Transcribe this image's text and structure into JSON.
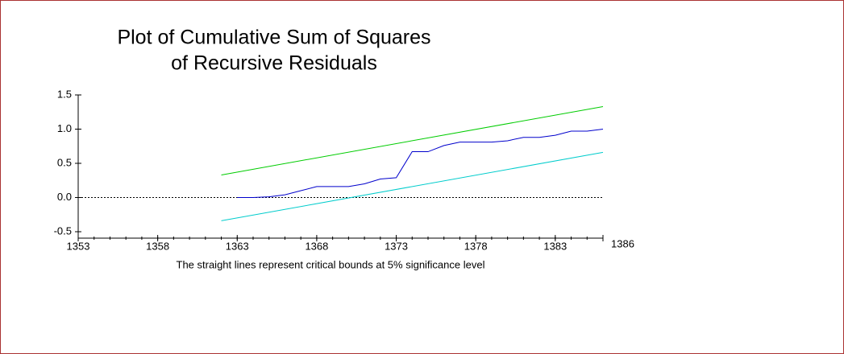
{
  "chart_data": {
    "type": "line",
    "title": [
      "Plot of Cumulative Sum of Squares",
      "of Recursive Residuals"
    ],
    "note": "The straight lines represent critical bounds at 5% significance level",
    "xlim": [
      1353,
      1386
    ],
    "xticks": [
      1353,
      1358,
      1363,
      1368,
      1373,
      1378,
      1383,
      1386
    ],
    "ylim": [
      -0.5,
      1.5
    ],
    "yticks": [
      {
        "value": 1.5,
        "label": "1.5"
      },
      {
        "value": 1,
        "label": "1.0"
      },
      {
        "value": 0.5,
        "label": "0.5"
      },
      {
        "value": 0,
        "label": "0.0"
      },
      {
        "value": -0.5,
        "label": "-0.5"
      }
    ],
    "reference_line": 0,
    "series": [
      {
        "color": "#00cc00",
        "x": [
          1362,
          1386
        ],
        "values": [
          0.33,
          1.33
        ]
      },
      {
        "color": "#00cccc",
        "x": [
          1362,
          1386
        ],
        "values": [
          -0.34,
          0.66
        ]
      },
      {
        "color": "#0000cc",
        "x": [
          1363,
          1364,
          1365,
          1366,
          1367,
          1368,
          1369,
          1370,
          1371,
          1372,
          1373,
          1374,
          1375,
          1376,
          1377,
          1378,
          1379,
          1380,
          1381,
          1382,
          1383,
          1384,
          1385,
          1386
        ],
        "values": [
          0,
          0,
          0.01,
          0.04,
          0.1,
          0.16,
          0.16,
          0.16,
          0.2,
          0.27,
          0.29,
          0.67,
          0.67,
          0.76,
          0.81,
          0.81,
          0.81,
          0.83,
          0.88,
          0.88,
          0.91,
          0.97,
          0.97,
          1.0
        ]
      }
    ]
  }
}
